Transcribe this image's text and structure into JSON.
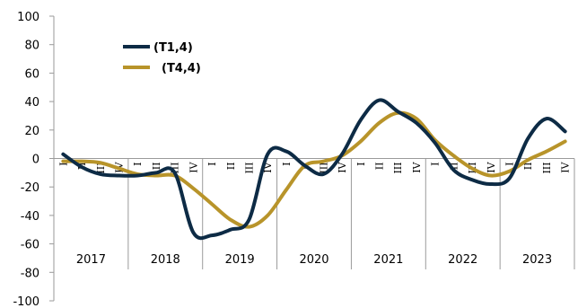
{
  "chart_data": {
    "type": "line",
    "title": "",
    "xlabel": "",
    "ylabel": "",
    "ylim": [
      -100,
      100
    ],
    "y_ticks": [
      "100",
      "80",
      "60",
      "40",
      "20",
      "0",
      "-20",
      "-40",
      "-60",
      "-80",
      "-100"
    ],
    "grid": false,
    "legend_position": "top-left",
    "years": [
      "2017",
      "2018",
      "2019",
      "2020",
      "2021",
      "2022",
      "2023"
    ],
    "quarter_labels": [
      "I",
      "II",
      "III",
      "IV"
    ],
    "categories": [
      "2017 I",
      "2017 II",
      "2017 III",
      "2017 IV",
      "2018 I",
      "2018 II",
      "2018 III",
      "2018 IV",
      "2019 I",
      "2019 II",
      "2019 III",
      "2019 IV",
      "2020 I",
      "2020 II",
      "2020 III",
      "2020 IV",
      "2021 I",
      "2021 II",
      "2021 III",
      "2021 IV",
      "2022 I",
      "2022 II",
      "2022 III",
      "2022 IV",
      "2023 I",
      "2023 II",
      "2023 III",
      "2023 IV"
    ],
    "series": [
      {
        "name": "(T1,4)",
        "color": "#0d2b45",
        "values": [
          3,
          -6,
          -11,
          -12,
          -12,
          -10,
          -10,
          -52,
          -54,
          -50,
          -43,
          3,
          5,
          -5,
          -11,
          3,
          27,
          41,
          33,
          25,
          11,
          -8,
          -15,
          -18,
          -14,
          14,
          28,
          19
        ]
      },
      {
        "name": "(T4,4)",
        "color": "#b8942a",
        "values": [
          -2,
          -2,
          -3,
          -7,
          -11,
          -12,
          -12,
          -21,
          -32,
          -43,
          -48,
          -40,
          -22,
          -5,
          -2,
          2,
          12,
          25,
          32,
          28,
          13,
          2,
          -7,
          -12,
          -9,
          -1,
          5,
          12
        ]
      }
    ]
  }
}
